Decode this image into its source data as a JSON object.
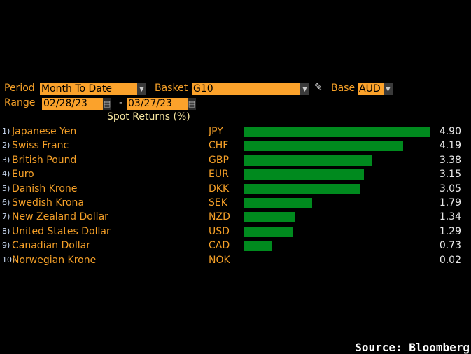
{
  "controls": {
    "period_label": "Period",
    "period_value": "Month To Date",
    "basket_label": "Basket",
    "basket_value": "G10",
    "base_label": "Base",
    "base_value": "AUD",
    "range_label": "Range",
    "range_start": "02/28/23",
    "range_sep": "-",
    "range_end": "03/27/23"
  },
  "chart_data": {
    "type": "bar",
    "orientation": "horizontal",
    "title": "Spot Returns (%)",
    "categories": [
      "Japanese Yen",
      "Swiss Franc",
      "British Pound",
      "Euro",
      "Danish Krone",
      "Swedish Krona",
      "New Zealand Dollar",
      "United States Dollar",
      "Canadian Dollar",
      "Norwegian Krone"
    ],
    "codes": [
      "JPY",
      "CHF",
      "GBP",
      "EUR",
      "DKK",
      "SEK",
      "NZD",
      "USD",
      "CAD",
      "NOK"
    ],
    "ranks": [
      "1)",
      "2)",
      "3)",
      "4)",
      "5)",
      "6)",
      "7)",
      "8)",
      "9)",
      "10)"
    ],
    "values": [
      4.9,
      4.19,
      3.38,
      3.15,
      3.05,
      1.79,
      1.34,
      1.29,
      0.73,
      0.02
    ],
    "labels": [
      "4.90",
      "4.19",
      "3.38",
      "3.15",
      "3.05",
      "1.79",
      "1.34",
      "1.29",
      "0.73",
      "0.02"
    ],
    "bar_color": "#008a1e",
    "xlim": [
      0,
      4.9
    ]
  },
  "source": "Source: Bloomberg"
}
